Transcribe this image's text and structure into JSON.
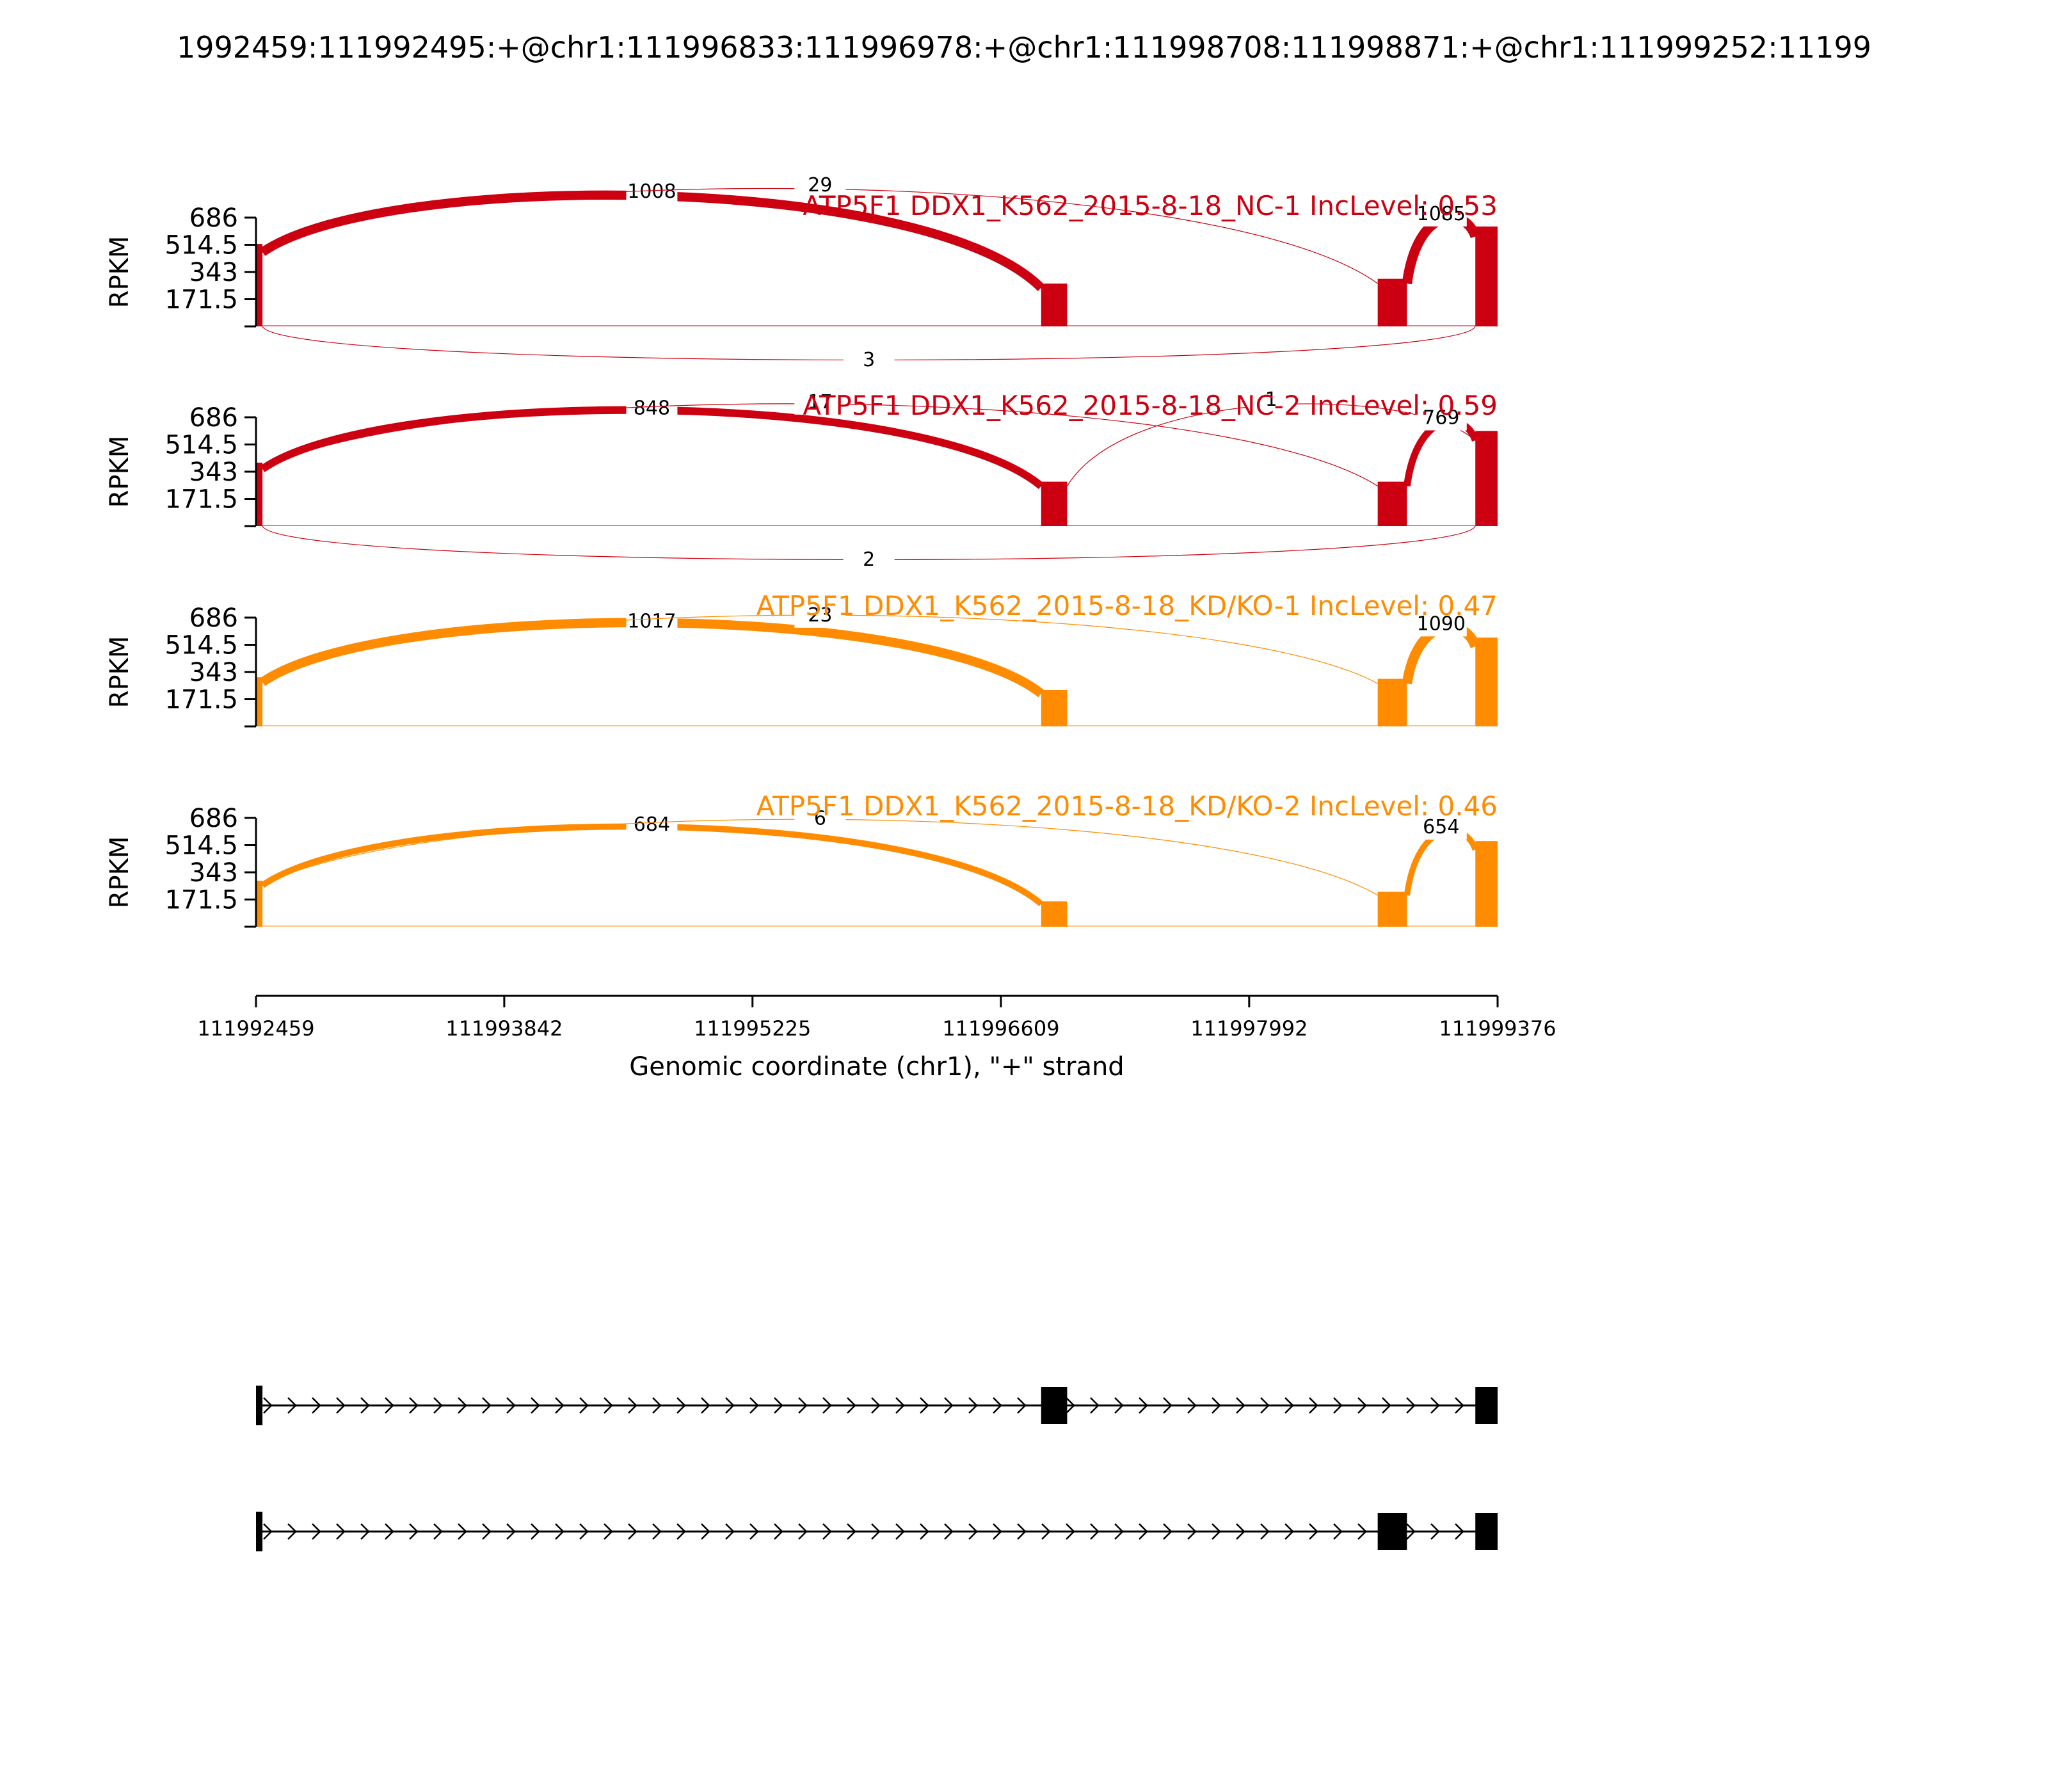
{
  "title": "1992459:111992495:+@chr1:111996833:111996978:+@chr1:111998708:111998871:+@chr1:111999252:11199",
  "colors": {
    "nc": "#cc0010",
    "kd": "#ff8c00",
    "axis": "#000000",
    "label_bg": "#ffffff",
    "gene": "#000000"
  },
  "chart_data": {
    "type": "area",
    "xlabel": "Genomic coordinate (chr1), \"+\" strand",
    "xlim": [
      111992459,
      111999376
    ],
    "xticks": [
      "111992459",
      "111993842",
      "111995225",
      "111996609",
      "111997992",
      "111999376"
    ],
    "ylabel": "RPKM",
    "ylim": [
      0,
      686
    ],
    "yticks": [
      "686",
      "514.5",
      "343",
      "171.5"
    ],
    "exons": [
      {
        "start": 111992459,
        "end": 111992495
      },
      {
        "start": 111996833,
        "end": 111996978
      },
      {
        "start": 111998708,
        "end": 111998871
      },
      {
        "start": 111999252,
        "end": 111999376
      }
    ],
    "panels": [
      {
        "label": "ATP5F1 DDX1_K562_2015-8-18_NC-1 IncLevel: 0.53",
        "color_key": "nc",
        "coverage": {
          "e1": 520,
          "e2": 270,
          "e3": 300,
          "e4": 630
        },
        "junctions": [
          {
            "from": 111992495,
            "to": 111996833,
            "count": "1008",
            "side": "top"
          },
          {
            "from": 111992495,
            "to": 111998708,
            "count": "29",
            "side": "top"
          },
          {
            "from": 111998871,
            "to": 111999252,
            "count": "1085",
            "side": "top"
          },
          {
            "from": 111992495,
            "to": 111999252,
            "count": "3",
            "side": "bottom"
          }
        ]
      },
      {
        "label": "ATP5F1 DDX1_K562_2015-8-18_NC-2 IncLevel: 0.59",
        "color_key": "nc",
        "coverage": {
          "e1": 400,
          "e2": 280,
          "e3": 280,
          "e4": 600
        },
        "junctions": [
          {
            "from": 111992495,
            "to": 111996833,
            "count": "848",
            "side": "top"
          },
          {
            "from": 111992495,
            "to": 111998708,
            "count": "17",
            "side": "top"
          },
          {
            "from": 111996978,
            "to": 111999252,
            "count": "1",
            "side": "top"
          },
          {
            "from": 111998871,
            "to": 111999252,
            "count": "769",
            "side": "top"
          },
          {
            "from": 111992495,
            "to": 111999252,
            "count": "2",
            "side": "bottom"
          }
        ]
      },
      {
        "label": "ATP5F1 DDX1_K562_2015-8-18_KD/KO-1 IncLevel: 0.47",
        "color_key": "kd",
        "coverage": {
          "e1": 310,
          "e2": 230,
          "e3": 300,
          "e4": 560
        },
        "junctions": [
          {
            "from": 111992495,
            "to": 111996833,
            "count": "1017",
            "side": "top"
          },
          {
            "from": 111992495,
            "to": 111998708,
            "count": "23",
            "side": "top"
          },
          {
            "from": 111998871,
            "to": 111999252,
            "count": "1090",
            "side": "top"
          }
        ]
      },
      {
        "label": "ATP5F1 DDX1_K562_2015-8-18_KD/KO-2 IncLevel: 0.46",
        "color_key": "kd",
        "coverage": {
          "e1": 290,
          "e2": 160,
          "e3": 220,
          "e4": 540
        },
        "junctions": [
          {
            "from": 111992495,
            "to": 111996833,
            "count": "684",
            "side": "top"
          },
          {
            "from": 111992495,
            "to": 111998708,
            "count": "6",
            "side": "top"
          },
          {
            "from": 111998871,
            "to": 111999252,
            "count": "654",
            "side": "top"
          }
        ]
      }
    ],
    "isoforms": [
      {
        "exons": [
          [
            111992459,
            111992495
          ],
          [
            111996833,
            111996978
          ],
          [
            111999252,
            111999376
          ]
        ]
      },
      {
        "exons": [
          [
            111992459,
            111992495
          ],
          [
            111998708,
            111998871
          ],
          [
            111999252,
            111999376
          ]
        ]
      }
    ]
  }
}
